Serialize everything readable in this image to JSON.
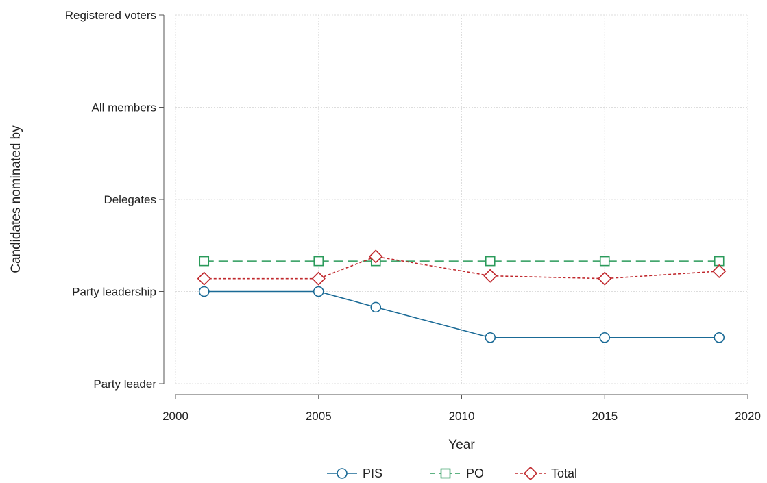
{
  "chart_data": {
    "type": "line",
    "xlabel": "Year",
    "ylabel": "Candidates nominated by",
    "xlim": [
      2000,
      2020
    ],
    "xticks": [
      2000,
      2005,
      2010,
      2015,
      2020
    ],
    "ylim": [
      1,
      5
    ],
    "yticks": [
      {
        "value": 1,
        "label": "Party leader"
      },
      {
        "value": 2,
        "label": "Party leadership"
      },
      {
        "value": 3,
        "label": "Delegates"
      },
      {
        "value": 4,
        "label": "All members"
      },
      {
        "value": 5,
        "label": "Registered voters"
      }
    ],
    "grid": true,
    "legend_position": "bottom",
    "series": [
      {
        "name": "PIS",
        "color": "#1a6a96",
        "marker": "circle",
        "line": "solid",
        "x": [
          2001,
          2005,
          2007,
          2011,
          2015,
          2019
        ],
        "y": [
          2.0,
          2.0,
          1.83,
          1.5,
          1.5,
          1.5
        ]
      },
      {
        "name": "PO",
        "color": "#2a9a5a",
        "marker": "square",
        "line": "dashed",
        "x": [
          2001,
          2005,
          2007,
          2011,
          2015,
          2019
        ],
        "y": [
          2.33,
          2.33,
          2.33,
          2.33,
          2.33,
          2.33
        ]
      },
      {
        "name": "Total",
        "color": "#c0282d",
        "marker": "diamond",
        "line": "dotted",
        "x": [
          2001,
          2005,
          2007,
          2011,
          2015,
          2019
        ],
        "y": [
          2.14,
          2.14,
          2.38,
          2.17,
          2.14,
          2.22
        ]
      }
    ]
  }
}
